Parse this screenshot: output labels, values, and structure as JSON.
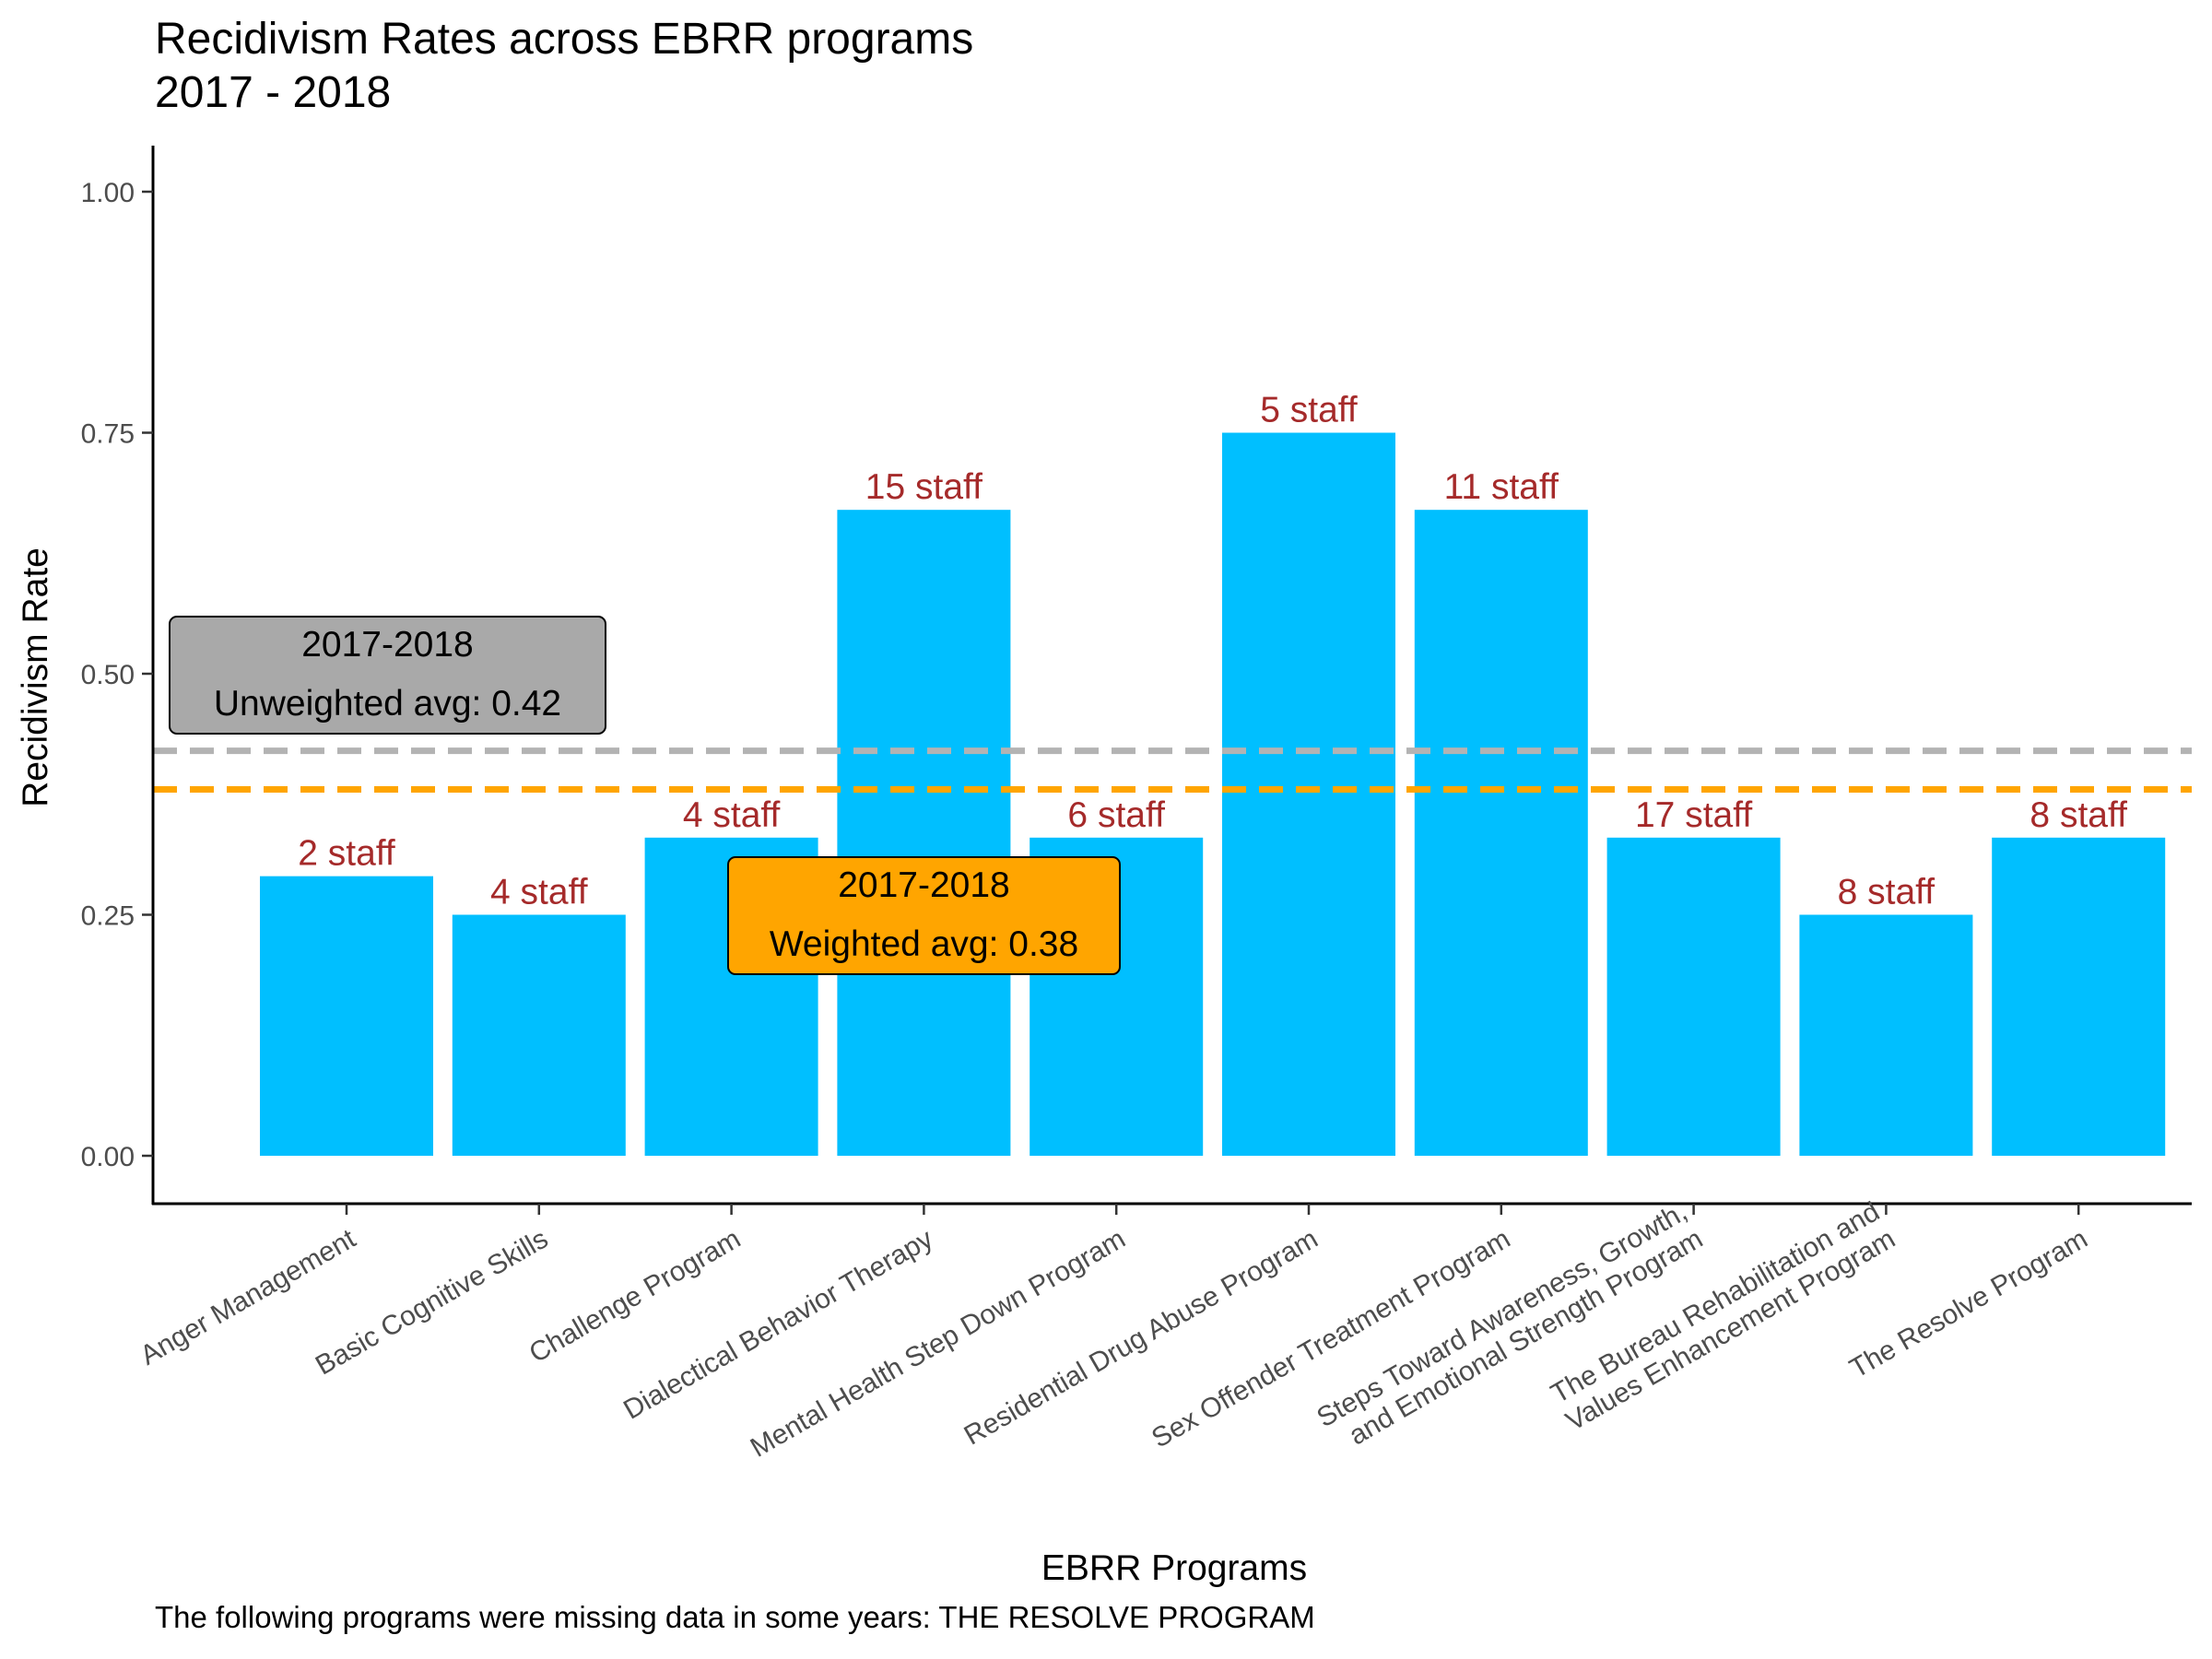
{
  "chart_data": {
    "type": "bar",
    "title_lines": [
      "Recidivism Rates across EBRR programs",
      "2017 - 2018"
    ],
    "xlabel": "EBRR Programs",
    "ylabel": "Recidivism Rate",
    "ylim": [
      0,
      1
    ],
    "yticks": [
      "0.00",
      "0.25",
      "0.50",
      "0.75",
      "1.00"
    ],
    "grid": false,
    "categories": [
      [
        "Anger Management"
      ],
      [
        "Basic Cognitive Skills"
      ],
      [
        "Challenge Program"
      ],
      [
        "Dialectical Behavior Therapy"
      ],
      [
        "Mental Health Step Down Program"
      ],
      [
        "Residential Drug Abuse Program"
      ],
      [
        "Sex Offender Treatment Program"
      ],
      [
        "Steps Toward Awareness, Growth,",
        "and Emotional Strength Program"
      ],
      [
        "The Bureau Rehabilitation and",
        "Values Enhancement Program"
      ],
      [
        "The Resolve Program"
      ]
    ],
    "values": [
      0.29,
      0.25,
      0.33,
      0.67,
      0.33,
      0.75,
      0.67,
      0.33,
      0.25,
      0.33
    ],
    "data_labels": [
      "2 staff",
      "4 staff",
      "4 staff",
      "15 staff",
      "6 staff",
      "5 staff",
      "11 staff",
      "17 staff",
      "8 staff",
      "8 staff"
    ],
    "reference_lines": [
      {
        "value": 0.42,
        "color": "#b3b3b3",
        "style": "dashed",
        "box_fill": "#a9a9a9",
        "label_lines": [
          "2017-2018",
          "Unweighted avg: 0.42"
        ]
      },
      {
        "value": 0.38,
        "color": "#ffa500",
        "style": "dashed",
        "box_fill": "#ffa500",
        "label_lines": [
          "2017-2018",
          "Weighted avg: 0.38"
        ]
      }
    ],
    "colors": {
      "bar": "#00bfff",
      "data_label": "#a52a2a",
      "axis": "#000000",
      "tick_label": "#4d4d4d"
    },
    "caption": "The following programs were missing data in some years: THE RESOLVE PROGRAM"
  }
}
